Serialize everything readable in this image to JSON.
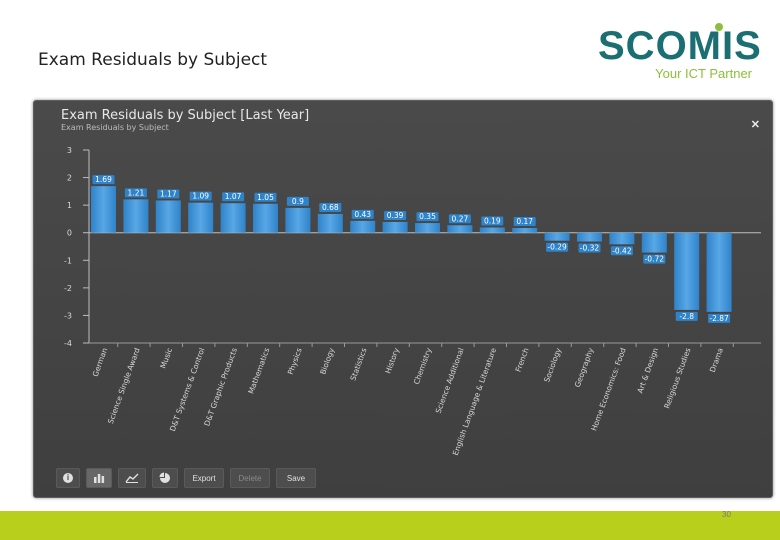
{
  "slide": {
    "title": "Exam Residuals by Subject",
    "page_number": "30"
  },
  "logo": {
    "word": "SCOMIS",
    "tagline": "Your ICT Partner",
    "colors": {
      "word": "#1b6f72",
      "accent": "#8dbf3a"
    }
  },
  "panel": {
    "title": "Exam Residuals by Subject [Last Year]",
    "subtitle": "Exam Residuals by Subject",
    "close_icon": "close-icon"
  },
  "toolbar": {
    "buttons": [
      {
        "name": "info-button",
        "icon": "info-icon",
        "label": ""
      },
      {
        "name": "bar-chart-button",
        "icon": "bar-chart-icon",
        "label": "",
        "active": true
      },
      {
        "name": "line-chart-button",
        "icon": "line-chart-icon",
        "label": ""
      },
      {
        "name": "pie-chart-button",
        "icon": "pie-chart-icon",
        "label": ""
      },
      {
        "name": "export-button",
        "label": "Export"
      },
      {
        "name": "delete-button",
        "label": "Delete",
        "disabled": true
      },
      {
        "name": "save-button",
        "label": "Save"
      }
    ]
  },
  "colors": {
    "bar": "#2f83c9",
    "bar_highlight": "#58a7e6",
    "label_bg": "#2f83c9",
    "panel_bg": "#444444",
    "footer": "#b8cf1c"
  },
  "chart_data": {
    "type": "bar",
    "title": "Exam Residuals by Subject [Last Year]",
    "subtitle": "Exam Residuals by Subject",
    "ylim": [
      -4,
      3
    ],
    "yticks": [
      "3",
      "2",
      "1",
      "0",
      "-1",
      "-2",
      "-3",
      "-4"
    ],
    "ytick_values": [
      3,
      2,
      1,
      0,
      -1,
      -2,
      -3,
      -4
    ],
    "grid": false,
    "categories": [
      "German",
      "Science Single Award",
      "Music",
      "D&T Systems & Control",
      "D&T Graphic Products",
      "Mathematics",
      "Physics",
      "Biology",
      "Statistics",
      "History",
      "Chemistry",
      "Science Additional",
      "English Language & Literature",
      "French",
      "Sociology",
      "Geography",
      "Home Economics: Food",
      "Art & Design",
      "Religious Studies",
      "Drama"
    ],
    "values": [
      1.69,
      1.21,
      1.17,
      1.09,
      1.07,
      1.05,
      0.9,
      0.68,
      0.43,
      0.39,
      0.35,
      0.27,
      0.19,
      0.17,
      -0.29,
      -0.32,
      -0.42,
      -0.72,
      -2.8,
      -2.87
    ],
    "value_labels": [
      "1.69",
      "1.21",
      "1.17",
      "1.09",
      "1.07",
      "1.05",
      "0.9",
      "0.68",
      "0.43",
      "0.39",
      "0.35",
      "0.27",
      "0.19",
      "0.17",
      "-0.29",
      "-0.32",
      "-0.42",
      "-0.72",
      "-2.8",
      "-2.87"
    ]
  }
}
